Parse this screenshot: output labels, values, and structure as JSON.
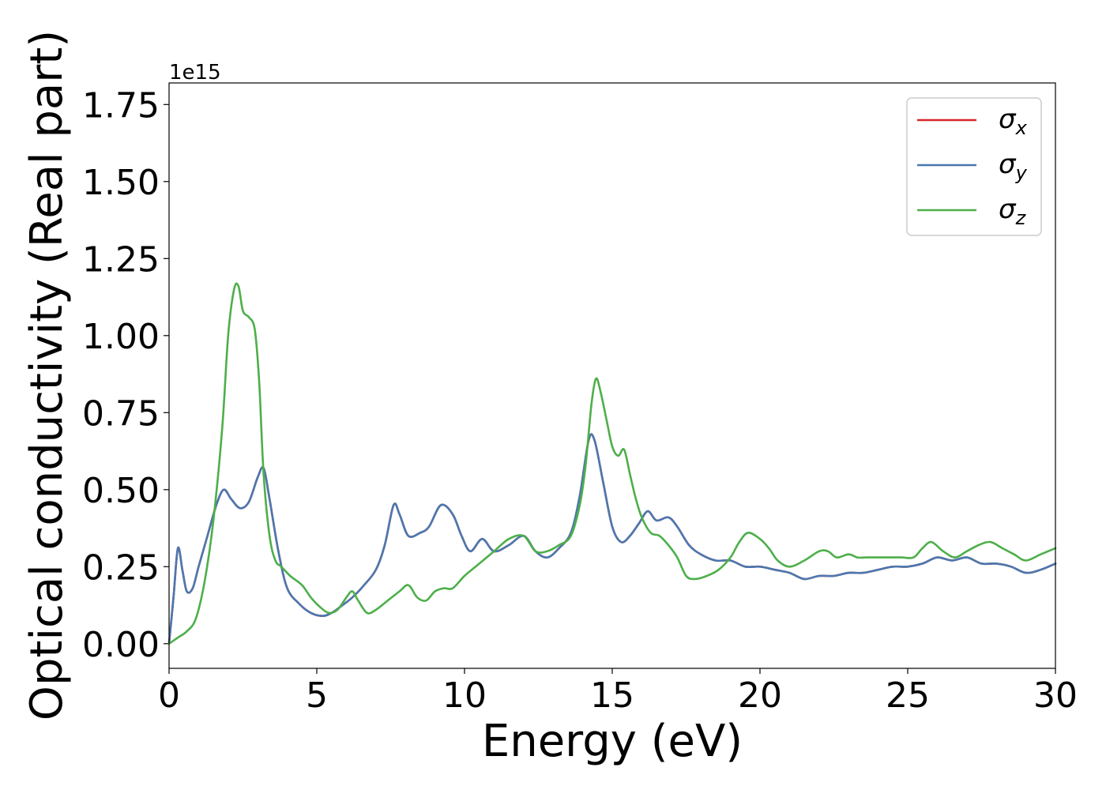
{
  "chart_data": {
    "type": "line",
    "title": "",
    "xlabel": "Energy (eV)",
    "ylabel": "Optical conductivity (Real part)",
    "y_offset_text": "1e15",
    "xlim": [
      0,
      30
    ],
    "ylim": [
      -0.08,
      1.82
    ],
    "xticks": [
      0,
      5,
      10,
      15,
      20,
      25,
      30
    ],
    "xtick_labels": [
      "0",
      "5",
      "10",
      "15",
      "20",
      "25",
      "30"
    ],
    "yticks": [
      0,
      0.25,
      0.5,
      0.75,
      1.0,
      1.25,
      1.5,
      1.75
    ],
    "ytick_labels": [
      "0.00",
      "0.25",
      "0.50",
      "0.75",
      "1.00",
      "1.25",
      "1.50",
      "1.75"
    ],
    "grid": false,
    "legend_position": "top-right",
    "series": [
      {
        "name": "σx",
        "legend_symbol": "σ",
        "legend_sub": "x",
        "color": "#d62728",
        "x": [
          0,
          0.15,
          0.3,
          0.45,
          0.6,
          0.8,
          1.0,
          1.3,
          1.6,
          1.85,
          2.1,
          2.4,
          2.7,
          3.0,
          3.2,
          3.4,
          3.7,
          4.0,
          4.4,
          4.8,
          5.2,
          5.5,
          5.8,
          6.2,
          6.6,
          7.0,
          7.3,
          7.6,
          7.8,
          8.1,
          8.5,
          8.8,
          9.2,
          9.6,
          9.9,
          10.2,
          10.6,
          11.0,
          11.5,
          12.0,
          12.4,
          12.8,
          13.2,
          13.6,
          13.9,
          14.2,
          14.4,
          14.7,
          15.0,
          15.3,
          15.6,
          15.9,
          16.2,
          16.5,
          16.9,
          17.2,
          17.6,
          18.0,
          18.5,
          19.0,
          19.5,
          20.0,
          20.5,
          21.0,
          21.5,
          22.0,
          22.5,
          23.0,
          23.5,
          24.0,
          24.5,
          25.0,
          25.5,
          26.0,
          26.5,
          27.0,
          27.5,
          28.0,
          28.5,
          29.0,
          29.5,
          30.0
        ],
        "y": [
          0.0,
          0.15,
          0.31,
          0.24,
          0.17,
          0.18,
          0.25,
          0.35,
          0.45,
          0.5,
          0.47,
          0.44,
          0.46,
          0.54,
          0.57,
          0.47,
          0.3,
          0.18,
          0.13,
          0.1,
          0.09,
          0.1,
          0.12,
          0.15,
          0.19,
          0.24,
          0.32,
          0.45,
          0.42,
          0.35,
          0.36,
          0.38,
          0.45,
          0.42,
          0.35,
          0.3,
          0.34,
          0.3,
          0.32,
          0.35,
          0.3,
          0.28,
          0.31,
          0.36,
          0.48,
          0.66,
          0.66,
          0.52,
          0.38,
          0.33,
          0.35,
          0.39,
          0.43,
          0.4,
          0.41,
          0.38,
          0.32,
          0.29,
          0.27,
          0.27,
          0.25,
          0.25,
          0.24,
          0.23,
          0.21,
          0.22,
          0.22,
          0.23,
          0.23,
          0.24,
          0.25,
          0.25,
          0.26,
          0.28,
          0.27,
          0.28,
          0.26,
          0.26,
          0.25,
          0.23,
          0.24,
          0.26
        ]
      },
      {
        "name": "σy",
        "legend_symbol": "σ",
        "legend_sub": "y",
        "color": "#4a78b0",
        "x": [
          0,
          0.15,
          0.3,
          0.45,
          0.6,
          0.8,
          1.0,
          1.3,
          1.6,
          1.85,
          2.1,
          2.4,
          2.7,
          3.0,
          3.2,
          3.4,
          3.7,
          4.0,
          4.4,
          4.8,
          5.2,
          5.5,
          5.8,
          6.2,
          6.6,
          7.0,
          7.3,
          7.6,
          7.8,
          8.1,
          8.5,
          8.8,
          9.2,
          9.6,
          9.9,
          10.2,
          10.6,
          11.0,
          11.5,
          12.0,
          12.4,
          12.8,
          13.2,
          13.6,
          13.9,
          14.2,
          14.4,
          14.7,
          15.0,
          15.3,
          15.6,
          15.9,
          16.2,
          16.5,
          16.9,
          17.2,
          17.6,
          18.0,
          18.5,
          19.0,
          19.5,
          20.0,
          20.5,
          21.0,
          21.5,
          22.0,
          22.5,
          23.0,
          23.5,
          24.0,
          24.5,
          25.0,
          25.5,
          26.0,
          26.5,
          27.0,
          27.5,
          28.0,
          28.5,
          29.0,
          29.5,
          30.0
        ],
        "y": [
          0.0,
          0.15,
          0.31,
          0.24,
          0.17,
          0.18,
          0.25,
          0.35,
          0.45,
          0.5,
          0.47,
          0.44,
          0.46,
          0.54,
          0.57,
          0.47,
          0.3,
          0.18,
          0.13,
          0.1,
          0.09,
          0.1,
          0.12,
          0.15,
          0.19,
          0.24,
          0.32,
          0.45,
          0.42,
          0.35,
          0.36,
          0.38,
          0.45,
          0.42,
          0.35,
          0.3,
          0.34,
          0.3,
          0.32,
          0.35,
          0.3,
          0.28,
          0.31,
          0.36,
          0.48,
          0.66,
          0.66,
          0.52,
          0.38,
          0.33,
          0.35,
          0.39,
          0.43,
          0.4,
          0.41,
          0.38,
          0.32,
          0.29,
          0.27,
          0.27,
          0.25,
          0.25,
          0.24,
          0.23,
          0.21,
          0.22,
          0.22,
          0.23,
          0.23,
          0.24,
          0.25,
          0.25,
          0.26,
          0.28,
          0.27,
          0.28,
          0.26,
          0.26,
          0.25,
          0.23,
          0.24,
          0.26
        ]
      },
      {
        "name": "σz",
        "legend_symbol": "σ",
        "legend_sub": "z",
        "color": "#4daf4a",
        "x": [
          0,
          0.3,
          0.6,
          0.9,
          1.2,
          1.5,
          1.8,
          2.0,
          2.2,
          2.35,
          2.5,
          2.7,
          2.9,
          3.05,
          3.2,
          3.4,
          3.6,
          3.8,
          4.1,
          4.5,
          4.8,
          5.1,
          5.4,
          5.7,
          6.0,
          6.2,
          6.4,
          6.7,
          7.0,
          7.4,
          7.8,
          8.1,
          8.4,
          8.7,
          9.0,
          9.3,
          9.6,
          10.0,
          10.5,
          11.0,
          11.5,
          12.0,
          12.4,
          12.8,
          13.2,
          13.6,
          13.9,
          14.1,
          14.3,
          14.45,
          14.6,
          14.8,
          15.0,
          15.2,
          15.4,
          15.6,
          15.8,
          16.0,
          16.3,
          16.6,
          16.9,
          17.2,
          17.5,
          17.8,
          18.2,
          18.6,
          19.0,
          19.3,
          19.6,
          20.0,
          20.3,
          20.6,
          21.0,
          21.5,
          22.0,
          22.3,
          22.6,
          23.0,
          23.3,
          23.6,
          24.0,
          24.4,
          24.8,
          25.2,
          25.5,
          25.8,
          26.2,
          26.6,
          27.0,
          27.4,
          27.8,
          28.2,
          28.6,
          29.0,
          29.5,
          30.0
        ],
        "y": [
          0.0,
          0.02,
          0.04,
          0.08,
          0.2,
          0.4,
          0.7,
          1.0,
          1.15,
          1.16,
          1.08,
          1.06,
          1.02,
          0.85,
          0.55,
          0.35,
          0.27,
          0.25,
          0.22,
          0.19,
          0.15,
          0.12,
          0.1,
          0.11,
          0.15,
          0.17,
          0.14,
          0.1,
          0.11,
          0.14,
          0.17,
          0.19,
          0.15,
          0.14,
          0.17,
          0.18,
          0.18,
          0.22,
          0.26,
          0.3,
          0.34,
          0.35,
          0.3,
          0.3,
          0.32,
          0.35,
          0.45,
          0.58,
          0.78,
          0.86,
          0.82,
          0.73,
          0.64,
          0.61,
          0.63,
          0.55,
          0.47,
          0.41,
          0.36,
          0.35,
          0.32,
          0.28,
          0.22,
          0.21,
          0.22,
          0.24,
          0.28,
          0.33,
          0.36,
          0.34,
          0.31,
          0.27,
          0.25,
          0.27,
          0.3,
          0.3,
          0.28,
          0.29,
          0.28,
          0.28,
          0.28,
          0.28,
          0.28,
          0.28,
          0.31,
          0.33,
          0.3,
          0.28,
          0.3,
          0.32,
          0.33,
          0.31,
          0.29,
          0.27,
          0.29,
          0.31
        ]
      }
    ]
  }
}
